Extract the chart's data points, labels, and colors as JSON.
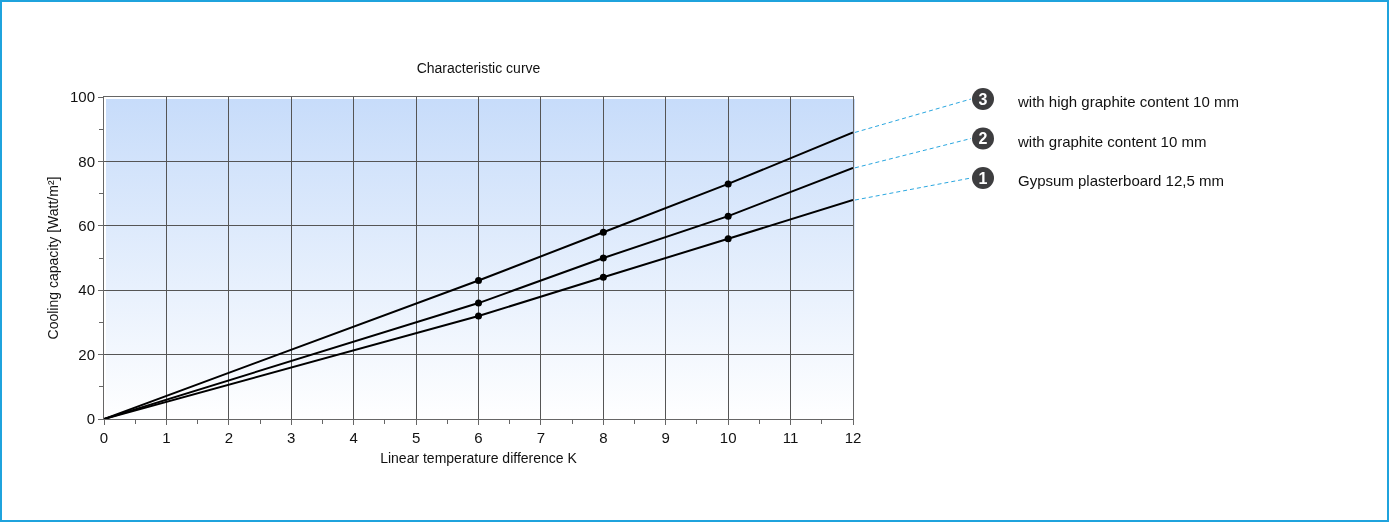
{
  "chart_data": {
    "type": "line",
    "title": "Characteristic curve",
    "xlabel": "Linear temperature difference K",
    "ylabel": "Cooling capacity [Watt/m²]",
    "xlim": [
      0,
      12
    ],
    "ylim": [
      0,
      100
    ],
    "xticks": [
      0,
      {
        "value": 0.5,
        "label": null
      },
      1,
      {
        "value": 1.5,
        "label": null
      },
      2,
      {
        "value": 2.5,
        "label": null
      },
      3,
      {
        "value": 3.5,
        "label": null
      },
      4,
      {
        "value": 4.5,
        "label": null
      },
      5,
      {
        "value": 5.5,
        "label": null
      },
      6,
      {
        "value": 6.5,
        "label": null
      },
      7,
      {
        "value": 7.5,
        "label": null
      },
      8,
      {
        "value": 8.5,
        "label": null
      },
      9,
      {
        "value": 9.5,
        "label": null
      },
      10,
      {
        "value": 10.5,
        "label": null
      },
      11,
      {
        "value": 11.5,
        "label": null
      },
      12
    ],
    "yticks": [
      0,
      {
        "value": 10,
        "label": null
      },
      20,
      {
        "value": 30,
        "label": null
      },
      40,
      {
        "value": 50,
        "label": null
      },
      60,
      {
        "value": 70,
        "label": null
      },
      80,
      {
        "value": 90,
        "label": null
      },
      100
    ],
    "grid": true,
    "legend": "right",
    "line_style": "solid",
    "annotations": [
      "3",
      "2",
      "1"
    ],
    "series": [
      {
        "name": "with high graphite content 10 mm",
        "color": "#000000",
        "x": [
          0,
          6,
          8,
          10,
          12
        ],
        "values": [
          0,
          43,
          58,
          73,
          89
        ],
        "marker": "none"
      },
      {
        "name": "with graphite content 10 mm",
        "color": "#000000",
        "x": [
          0,
          6,
          8,
          10,
          12
        ],
        "values": [
          0,
          36,
          50,
          63,
          78
        ],
        "marker": "none"
      },
      {
        "name": "Gypsum plasterboard 12,5 mm",
        "color": "#000000",
        "x": [
          0,
          6,
          8,
          10,
          12
        ],
        "values": [
          0,
          32,
          44,
          56,
          68
        ],
        "marker": "none"
      },
      {
        "type": "scatter",
        "color": "#000000",
        "x": [
          6,
          8,
          10
        ],
        "values": [
          43,
          58,
          73
        ],
        "marker": "circle"
      },
      {
        "type": "scatter",
        "color": "#000000",
        "x": [
          6,
          8,
          10
        ],
        "values": [
          36,
          50,
          63
        ],
        "marker": "circle"
      },
      {
        "type": "scatter",
        "color": "#000000",
        "x": [
          6,
          8,
          10
        ],
        "values": [
          32,
          44,
          56
        ],
        "marker": "circle"
      }
    ]
  }
}
